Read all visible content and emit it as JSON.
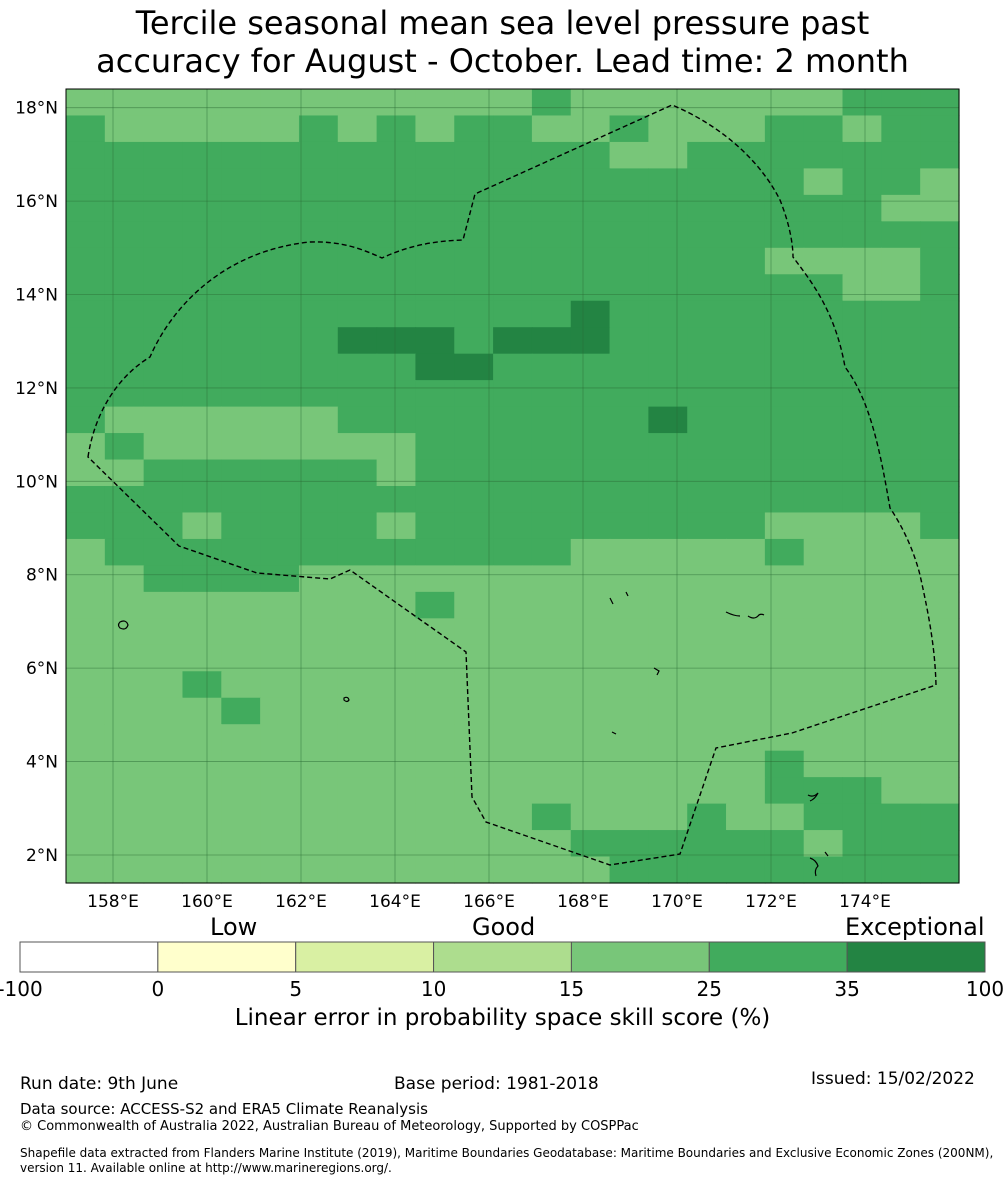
{
  "title": {
    "line1": "Tercile seasonal mean sea level pressure past",
    "line2": "accuracy for August - October. Lead time: 2 month"
  },
  "map": {
    "lon_range": [
      157.0,
      176.0
    ],
    "lat_range": [
      1.4,
      18.4
    ],
    "x_ticks": [
      "158°E",
      "160°E",
      "162°E",
      "164°E",
      "166°E",
      "168°E",
      "170°E",
      "172°E",
      "174°E"
    ],
    "y_ticks": [
      "18°N",
      "16°N",
      "14°N",
      "12°N",
      "10°N",
      "8°N",
      "6°N",
      "4°N",
      "2°N"
    ],
    "gridlines": true,
    "boundary": "dashed-eez-outline",
    "palette": {
      "15-25": "#78c679",
      "25-35": "#41ab5d",
      "35-100": "#238443"
    }
  },
  "colorbar": {
    "category_labels": [
      "Low",
      "Good",
      "Exceptional"
    ],
    "ticks": [
      "-100",
      "0",
      "5",
      "10",
      "15",
      "25",
      "35",
      "100"
    ],
    "colors": [
      "#ffffff",
      "#ffffcc",
      "#d9f0a3",
      "#addd8e",
      "#78c679",
      "#41ab5d",
      "#238443"
    ],
    "label": "Linear error in probability space skill score (%)"
  },
  "footer": {
    "run_date": "Run date: 9th June",
    "base_period": "Base period: 1981-2018",
    "issued": "Issued: 15/02/2022",
    "data_source": "Data source: ACCESS-S2 and ERA5 Climate Reanalysis",
    "copyright": "© Commonwealth of Australia 2022, Australian Bureau of Meteorology, Supported by COSPPac",
    "shapefile_line1": "Shapefile data extracted from Flanders Marine Institute (2019), Maritime Boundaries Geodatabase: Maritime Boundaries and Exclusive Economic Zones (200NM),",
    "shapefile_line2": "version 11. Available online at http://www.marineregions.org/."
  }
}
